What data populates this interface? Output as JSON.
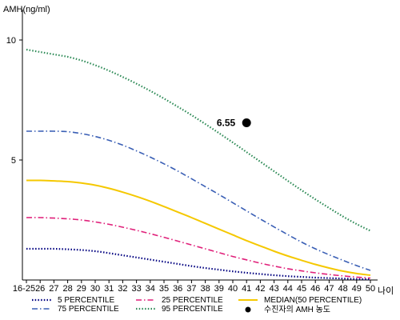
{
  "chart_data": {
    "type": "line",
    "title": "",
    "ylabel": "AMH(ng/ml)",
    "xlabel": "나이",
    "ylim": [
      0,
      10
    ],
    "yticks": [
      5,
      10
    ],
    "grid": false,
    "legend_placement": "bottom",
    "categories": [
      "16-25",
      "26",
      "27",
      "28",
      "29",
      "30",
      "31",
      "32",
      "33",
      "34",
      "35",
      "36",
      "37",
      "38",
      "39",
      "40",
      "41",
      "42",
      "43",
      "44",
      "45",
      "46",
      "47",
      "48",
      "49",
      "50"
    ],
    "series": [
      {
        "name": "5 PERCENTILE",
        "color": "#000080",
        "style": "dotted",
        "values": [
          1.3,
          1.3,
          1.3,
          1.28,
          1.25,
          1.2,
          1.12,
          1.03,
          0.94,
          0.85,
          0.76,
          0.67,
          0.58,
          0.5,
          0.43,
          0.36,
          0.3,
          0.25,
          0.2,
          0.16,
          0.13,
          0.1,
          0.08,
          0.06,
          0.04,
          0.03
        ]
      },
      {
        "name": "25 PERCENTILE",
        "color": "#e0207a",
        "style": "dashdot",
        "values": [
          2.6,
          2.6,
          2.58,
          2.55,
          2.5,
          2.42,
          2.32,
          2.2,
          2.07,
          1.93,
          1.78,
          1.62,
          1.46,
          1.3,
          1.14,
          0.98,
          0.84,
          0.7,
          0.58,
          0.47,
          0.38,
          0.3,
          0.23,
          0.17,
          0.12,
          0.08
        ]
      },
      {
        "name": "MEDIAN(50 PERCENTILE)",
        "color": "#f5c800",
        "style": "solid",
        "values": [
          4.15,
          4.15,
          4.13,
          4.1,
          4.04,
          3.95,
          3.82,
          3.66,
          3.48,
          3.28,
          3.06,
          2.83,
          2.6,
          2.36,
          2.12,
          1.88,
          1.64,
          1.42,
          1.2,
          1.0,
          0.82,
          0.65,
          0.5,
          0.37,
          0.27,
          0.2
        ]
      },
      {
        "name": "75 PERCENTILE",
        "color": "#3a5fb5",
        "style": "dashdot",
        "values": [
          6.2,
          6.2,
          6.2,
          6.18,
          6.1,
          5.98,
          5.82,
          5.62,
          5.38,
          5.12,
          4.84,
          4.54,
          4.22,
          3.89,
          3.56,
          3.22,
          2.88,
          2.54,
          2.21,
          1.89,
          1.58,
          1.3,
          1.05,
          0.82,
          0.6,
          0.4
        ]
      },
      {
        "name": "95 PERCENTILE",
        "color": "#2e8b57",
        "style": "dotted",
        "values": [
          9.6,
          9.5,
          9.4,
          9.3,
          9.15,
          8.95,
          8.72,
          8.46,
          8.18,
          7.88,
          7.56,
          7.22,
          6.87,
          6.5,
          6.12,
          5.73,
          5.33,
          4.93,
          4.53,
          4.13,
          3.74,
          3.36,
          3.0,
          2.65,
          2.33,
          2.05
        ]
      }
    ],
    "patient_point": {
      "label": "수진자의 AMH 농도",
      "x": "41",
      "y": 6.55,
      "value_text": "6.55",
      "color": "#000000"
    }
  }
}
